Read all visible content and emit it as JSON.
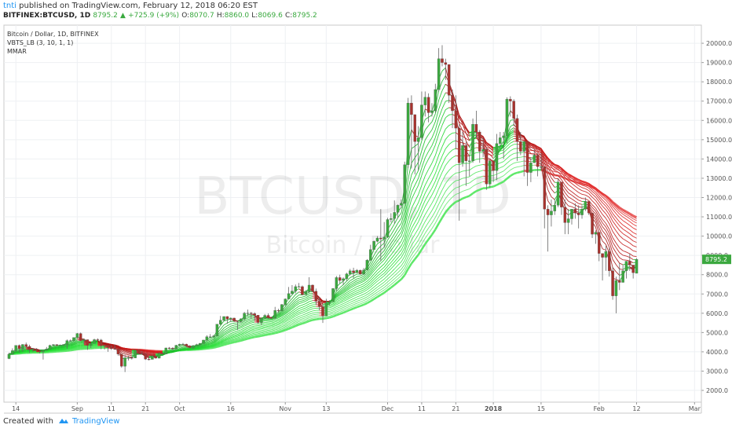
{
  "header": {
    "author": "tnti",
    "published": " published on TradingView.com, February 12, 2018 06:20 EST",
    "symbol": "BITFINEX:BTCUSD, 1D",
    "last": "8795.2",
    "arrow": "▲",
    "change": "+725.9 (+9%)",
    "o_key": "O:",
    "o": "8070.7",
    "h_key": "H:",
    "h": "8860.0",
    "l_key": "L:",
    "l": "8069.6",
    "c_key": "C:",
    "c": "8795.2"
  },
  "footer": {
    "created": "Created with",
    "brand": "TradingView"
  },
  "chart_data": {
    "type": "candlestick",
    "legend": [
      "Bitcoin / Dollar, 1D, BITFINEX",
      "VBTS_LB (3, 10, 1, 1)",
      "MMAR"
    ],
    "watermark": "BTCUSD, 1D",
    "watermark_sub": "Bitcoin / Dollar",
    "up_color": "#3ba83f",
    "down_color": "#a8322d",
    "grid": true,
    "xlim": [
      -1.5,
      203
    ],
    "ylim": [
      1390,
      20940
    ],
    "xticks": [
      {
        "value": 2,
        "label": "14"
      },
      {
        "value": 20,
        "label": "Sep"
      },
      {
        "value": 30,
        "label": "11"
      },
      {
        "value": 40,
        "label": "21"
      },
      {
        "value": 50,
        "label": "Oct"
      },
      {
        "value": 65,
        "label": "16"
      },
      {
        "value": 81,
        "label": "Nov"
      },
      {
        "value": 93,
        "label": "13"
      },
      {
        "value": 111,
        "label": "Dec"
      },
      {
        "value": 121,
        "label": "11"
      },
      {
        "value": 131,
        "label": "21"
      },
      {
        "value": 142,
        "label": "2018"
      },
      {
        "value": 156,
        "label": "15"
      },
      {
        "value": 173,
        "label": "Feb"
      },
      {
        "value": 184,
        "label": "12"
      },
      {
        "value": 201,
        "label": "Mar"
      }
    ],
    "yticks": [
      {
        "value": 2000,
        "label": "2000.0"
      },
      {
        "value": 3000,
        "label": "3000.0"
      },
      {
        "value": 4000,
        "label": "4000.0"
      },
      {
        "value": 5000,
        "label": "5000.0"
      },
      {
        "value": 6000,
        "label": "6000.0"
      },
      {
        "value": 7000,
        "label": "7000.0"
      },
      {
        "value": 8000,
        "label": "8000.0"
      },
      {
        "value": 9000,
        "label": "9000.0"
      },
      {
        "value": 10000,
        "label": "10000.0"
      },
      {
        "value": 11000,
        "label": "11000.0"
      },
      {
        "value": 12000,
        "label": "12000.0"
      },
      {
        "value": 13000,
        "label": "13000.0"
      },
      {
        "value": 14000,
        "label": "14000.0"
      },
      {
        "value": 15000,
        "label": "15000.0"
      },
      {
        "value": 16000,
        "label": "16000.0"
      },
      {
        "value": 17000,
        "label": "17000.0"
      },
      {
        "value": 18000,
        "label": "18000.0"
      },
      {
        "value": 19000,
        "label": "19000.0"
      },
      {
        "value": 20000,
        "label": "20000.0"
      }
    ],
    "candles": [
      [
        3650,
        3950,
        3620,
        3880
      ],
      [
        3880,
        4180,
        3850,
        4060
      ],
      [
        4060,
        4340,
        3990,
        4330
      ],
      [
        4330,
        4380,
        3950,
        4160
      ],
      [
        4160,
        4400,
        4000,
        4380
      ],
      [
        4380,
        4480,
        4250,
        4280
      ],
      [
        4280,
        4370,
        3940,
        4110
      ],
      [
        4110,
        4200,
        3980,
        4150
      ],
      [
        4150,
        4200,
        4020,
        4060
      ],
      [
        4060,
        4110,
        3920,
        4000
      ],
      [
        4000,
        4110,
        3600,
        4100
      ],
      [
        4100,
        4250,
        4050,
        4150
      ],
      [
        4150,
        4370,
        4120,
        4330
      ],
      [
        4330,
        4400,
        4300,
        4370
      ],
      [
        4370,
        4400,
        4290,
        4350
      ],
      [
        4350,
        4380,
        4310,
        4350
      ],
      [
        4350,
        4400,
        4300,
        4380
      ],
      [
        4380,
        4640,
        4160,
        4580
      ],
      [
        4580,
        4640,
        4540,
        4580
      ],
      [
        4580,
        4750,
        4540,
        4740
      ],
      [
        4740,
        4980,
        4700,
        4950
      ],
      [
        4950,
        5000,
        4540,
        4580
      ],
      [
        4580,
        4700,
        4400,
        4630
      ],
      [
        4630,
        4630,
        4100,
        4330
      ],
      [
        4330,
        4480,
        4200,
        4430
      ],
      [
        4430,
        4680,
        4430,
        4630
      ],
      [
        4630,
        4700,
        4560,
        4610
      ],
      [
        4610,
        4670,
        4130,
        4310
      ],
      [
        4310,
        4340,
        4120,
        4330
      ],
      [
        4330,
        4330,
        4000,
        4220
      ],
      [
        4220,
        4340,
        4100,
        4160
      ],
      [
        4160,
        4380,
        4100,
        4150
      ],
      [
        4150,
        4150,
        3800,
        3880
      ],
      [
        3880,
        3900,
        3180,
        3250
      ],
      [
        3250,
        3850,
        2950,
        3690
      ],
      [
        3690,
        3800,
        3550,
        3700
      ],
      [
        3700,
        3770,
        3600,
        3680
      ],
      [
        3680,
        4120,
        3670,
        4090
      ],
      [
        4090,
        4130,
        3850,
        3910
      ],
      [
        3910,
        4040,
        3860,
        3880
      ],
      [
        3880,
        3900,
        3580,
        3620
      ],
      [
        3620,
        3760,
        3560,
        3610
      ],
      [
        3610,
        3800,
        3600,
        3790
      ],
      [
        3790,
        3800,
        3650,
        3670
      ],
      [
        3670,
        3970,
        3660,
        3930
      ],
      [
        3930,
        3970,
        3860,
        3890
      ],
      [
        3890,
        4220,
        3880,
        4200
      ],
      [
        4200,
        4250,
        4140,
        4190
      ],
      [
        4190,
        4240,
        4070,
        4160
      ],
      [
        4160,
        4360,
        4130,
        4340
      ],
      [
        4340,
        4420,
        4290,
        4400
      ],
      [
        4400,
        4460,
        4370,
        4400
      ],
      [
        4400,
        4420,
        4260,
        4310
      ],
      [
        4310,
        4340,
        4180,
        4220
      ],
      [
        4220,
        4360,
        4150,
        4320
      ],
      [
        4320,
        4420,
        4300,
        4370
      ],
      [
        4370,
        4460,
        4310,
        4440
      ],
      [
        4440,
        4620,
        4430,
        4610
      ],
      [
        4610,
        4860,
        4570,
        4780
      ],
      [
        4780,
        4920,
        4730,
        4780
      ],
      [
        4780,
        4880,
        4740,
        4820
      ],
      [
        4820,
        5440,
        4810,
        5430
      ],
      [
        5430,
        5860,
        5380,
        5640
      ],
      [
        5640,
        5840,
        5600,
        5830
      ],
      [
        5830,
        5850,
        5450,
        5700
      ],
      [
        5700,
        5780,
        5570,
        5750
      ],
      [
        5750,
        5770,
        5540,
        5600
      ],
      [
        5600,
        5600,
        5130,
        5570
      ],
      [
        5570,
        5740,
        5510,
        5710
      ],
      [
        5710,
        6070,
        5620,
        6000
      ],
      [
        6000,
        6190,
        5870,
        6010
      ],
      [
        6010,
        6070,
        5720,
        5980
      ],
      [
        5980,
        6050,
        5640,
        5900
      ],
      [
        5900,
        5910,
        5450,
        5520
      ],
      [
        5520,
        5760,
        5380,
        5740
      ],
      [
        5740,
        5960,
        5700,
        5890
      ],
      [
        5890,
        5990,
        5720,
        5770
      ],
      [
        5770,
        5830,
        5710,
        5750
      ],
      [
        5750,
        6330,
        5690,
        6150
      ],
      [
        6150,
        6230,
        6020,
        6130
      ],
      [
        6130,
        6480,
        6100,
        6450
      ],
      [
        6450,
        6770,
        6380,
        6740
      ],
      [
        6740,
        7360,
        6740,
        7020
      ],
      [
        7020,
        7460,
        6960,
        7150
      ],
      [
        7150,
        7490,
        7030,
        7380
      ],
      [
        7380,
        7570,
        7350,
        7380
      ],
      [
        7380,
        7440,
        6940,
        6960
      ],
      [
        6960,
        7200,
        6960,
        7120
      ],
      [
        7120,
        7870,
        7040,
        7460
      ],
      [
        7460,
        7490,
        7110,
        7140
      ],
      [
        7140,
        7280,
        6440,
        6620
      ],
      [
        6620,
        6850,
        6150,
        6340
      ],
      [
        6340,
        6470,
        5500,
        5860
      ],
      [
        5860,
        6750,
        5860,
        6540
      ],
      [
        6540,
        6680,
        6400,
        6600
      ],
      [
        6600,
        7300,
        6600,
        7280
      ],
      [
        7280,
        7930,
        7150,
        7850
      ],
      [
        7850,
        8000,
        7540,
        7700
      ],
      [
        7700,
        7860,
        7460,
        7790
      ],
      [
        7790,
        8100,
        7680,
        8040
      ],
      [
        8040,
        8300,
        7960,
        8200
      ],
      [
        8200,
        8360,
        7820,
        8100
      ],
      [
        8100,
        8290,
        8080,
        8230
      ],
      [
        8230,
        8260,
        8000,
        8030
      ],
      [
        8030,
        8350,
        8000,
        8240
      ],
      [
        8240,
        8810,
        8220,
        8750
      ],
      [
        8750,
        9550,
        8720,
        9300
      ],
      [
        9300,
        9770,
        9300,
        9730
      ],
      [
        9730,
        10000,
        9680,
        9900
      ],
      [
        9900,
        11400,
        8700,
        9850
      ],
      [
        9850,
        10730,
        9400,
        9950
      ],
      [
        9950,
        10950,
        9900,
        10860
      ],
      [
        10860,
        11190,
        10710,
        10910
      ],
      [
        10910,
        11850,
        10650,
        11230
      ],
      [
        11230,
        11640,
        10930,
        11600
      ],
      [
        11600,
        11900,
        11450,
        11700
      ],
      [
        11700,
        13860,
        11650,
        13700
      ],
      [
        13700,
        17170,
        13540,
        16900
      ],
      [
        16900,
        17300,
        13500,
        16300
      ],
      [
        16300,
        16300,
        13200,
        14900
      ],
      [
        14900,
        15700,
        13400,
        15100
      ],
      [
        15100,
        17500,
        15000,
        16800
      ],
      [
        16800,
        17500,
        16200,
        17200
      ],
      [
        17200,
        17400,
        15900,
        16400
      ],
      [
        16400,
        16900,
        16200,
        16500
      ],
      [
        16500,
        17900,
        16400,
        17600
      ],
      [
        17600,
        19750,
        17500,
        19200
      ],
      [
        19200,
        19900,
        18800,
        19000
      ],
      [
        19000,
        19200,
        18100,
        18900
      ],
      [
        18900,
        18900,
        16900,
        17300
      ],
      [
        17300,
        17600,
        15600,
        16500
      ],
      [
        16500,
        17300,
        14500,
        15600
      ],
      [
        15600,
        15800,
        10800,
        13800
      ],
      [
        13800,
        15400,
        13600,
        14700
      ],
      [
        14700,
        14900,
        12600,
        13900
      ],
      [
        13900,
        14200,
        13100,
        13900
      ],
      [
        13900,
        16100,
        13800,
        15800
      ],
      [
        15800,
        16500,
        15100,
        15400
      ],
      [
        15400,
        15500,
        13800,
        14400
      ],
      [
        14400,
        15100,
        14100,
        14500
      ],
      [
        14500,
        14600,
        12400,
        12700
      ],
      [
        12700,
        14000,
        12500,
        13900
      ],
      [
        13900,
        13900,
        12800,
        13400
      ],
      [
        13400,
        15300,
        12900,
        14800
      ],
      [
        14800,
        15400,
        14600,
        15100
      ],
      [
        15100,
        15400,
        14000,
        15200
      ],
      [
        15200,
        17200,
        14800,
        17100
      ],
      [
        17100,
        17250,
        16200,
        17000
      ],
      [
        17000,
        17100,
        15700,
        16100
      ],
      [
        16100,
        16300,
        13900,
        14900
      ],
      [
        14900,
        15400,
        14200,
        14400
      ],
      [
        14400,
        14900,
        13100,
        14900
      ],
      [
        14900,
        14900,
        12600,
        13300
      ],
      [
        13300,
        14100,
        12800,
        13800
      ],
      [
        13800,
        14500,
        13800,
        14200
      ],
      [
        14200,
        14300,
        13100,
        13600
      ],
      [
        13600,
        14300,
        13400,
        13600
      ],
      [
        13600,
        13600,
        10400,
        11400
      ],
      [
        11400,
        11600,
        9200,
        11100
      ],
      [
        11100,
        11900,
        10500,
        11300
      ],
      [
        11300,
        11900,
        11100,
        11600
      ],
      [
        11600,
        13000,
        11500,
        12800
      ],
      [
        12800,
        12800,
        11100,
        11500
      ],
      [
        11500,
        11900,
        10100,
        10700
      ],
      [
        10700,
        11400,
        10100,
        10900
      ],
      [
        10900,
        11400,
        10600,
        11400
      ],
      [
        11400,
        11700,
        10900,
        11200
      ],
      [
        11200,
        11600,
        10400,
        11100
      ],
      [
        11100,
        11600,
        10900,
        11400
      ],
      [
        11400,
        12000,
        11300,
        11800
      ],
      [
        11800,
        11800,
        11100,
        11200
      ],
      [
        11200,
        11200,
        9900,
        10100
      ],
      [
        10100,
        10300,
        9600,
        10200
      ],
      [
        10200,
        10200,
        8700,
        9100
      ],
      [
        9100,
        9100,
        7700,
        8900
      ],
      [
        8900,
        9500,
        8200,
        9200
      ],
      [
        9200,
        9400,
        7900,
        8200
      ],
      [
        8200,
        8400,
        6700,
        6900
      ],
      [
        6900,
        7900,
        6000,
        7700
      ],
      [
        7700,
        8600,
        7200,
        7600
      ],
      [
        7600,
        8500,
        7600,
        8200
      ],
      [
        8200,
        8700,
        7800,
        8700
      ],
      [
        8700,
        9100,
        8200,
        8500
      ],
      [
        8500,
        8500,
        7800,
        8100
      ],
      [
        8070.7,
        8860,
        8069.6,
        8795.2
      ]
    ]
  }
}
